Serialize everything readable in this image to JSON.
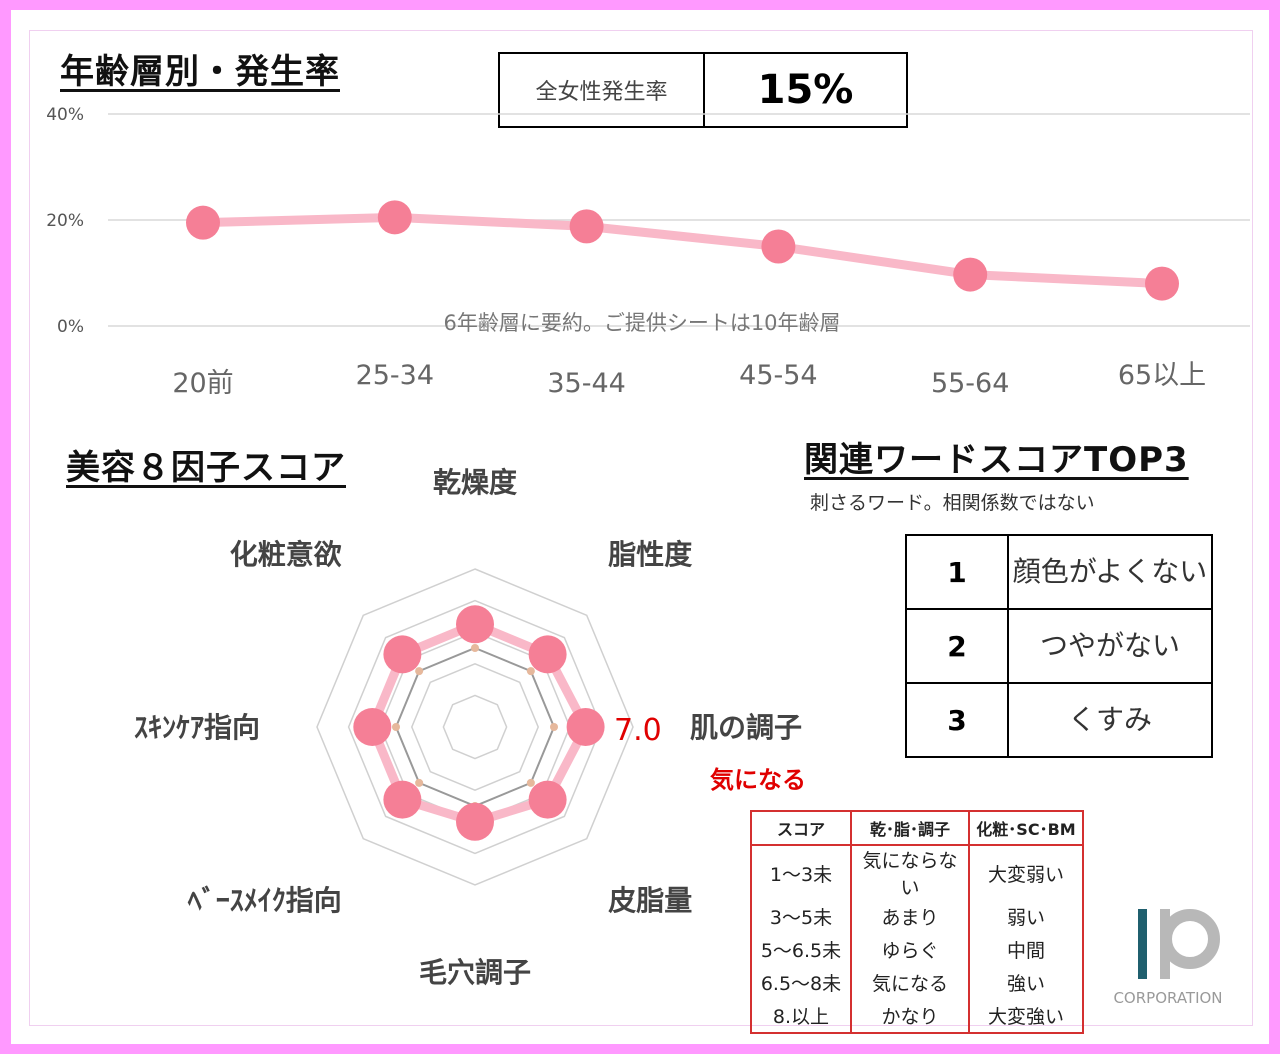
{
  "age_section": {
    "title": "年齢層別・発生率",
    "stat_label": "全女性発生率",
    "stat_value": "15%",
    "note": "6年齢層に要約。ご提供シートは10年齢層"
  },
  "beauty_section": {
    "title": "美容８因子スコア"
  },
  "words_section": {
    "title": "関連ワードスコアTOP3",
    "subtitle": "刺さるワード。相関係数ではない",
    "ranks": [
      {
        "rank": "1",
        "word": "顔色がよくない"
      },
      {
        "rank": "2",
        "word": "つやがない"
      },
      {
        "rank": "3",
        "word": "くすみ"
      }
    ]
  },
  "highlight": {
    "value_label": "7.0",
    "note": "気になる"
  },
  "legend": {
    "headers": [
      "スコア",
      "乾･脂･調子",
      "化粧･SC･BM"
    ],
    "rows": [
      [
        "1～3未",
        "気にならない",
        "大変弱い"
      ],
      [
        "3～5未",
        "あまり",
        "弱い"
      ],
      [
        "5～6.5未",
        "ゆらぐ",
        "中間"
      ],
      [
        "6.5～8未",
        "気になる",
        "強い"
      ],
      [
        "8.以上",
        "かなり",
        "大変強い"
      ]
    ]
  },
  "logo": {
    "text": "CORPORATION"
  },
  "colors": {
    "series": "#f57f96",
    "line": "#f9b8c8",
    "accent": "#e00000",
    "frame": "#ff99ff"
  },
  "chart_data": [
    {
      "type": "line",
      "categories": [
        "20前",
        "25-34",
        "35-44",
        "45-54",
        "55-64",
        "65以上"
      ],
      "values": [
        19.5,
        20.5,
        18.8,
        15,
        9.7,
        8
      ],
      "yticks": [
        "0%",
        "20%",
        "40%"
      ],
      "ylim": [
        0,
        40
      ],
      "grid": true
    },
    {
      "type": "radar",
      "axes": [
        "乾燥度",
        "脂性度",
        "肌の調子",
        "皮脂量",
        "毛穴調子",
        "ﾍﾞｰｽﾒｲｸ指向",
        "ｽｷﾝｹｱ指向",
        "化粧意欲"
      ],
      "values": [
        6.5,
        6.5,
        7.0,
        6.5,
        6.0,
        6.5,
        6.5,
        6.5
      ],
      "reference_values": [
        5,
        5,
        5,
        5,
        5,
        5,
        5,
        5
      ],
      "rings": [
        2,
        4,
        6,
        8,
        10
      ],
      "range": [
        0,
        10
      ]
    }
  ]
}
